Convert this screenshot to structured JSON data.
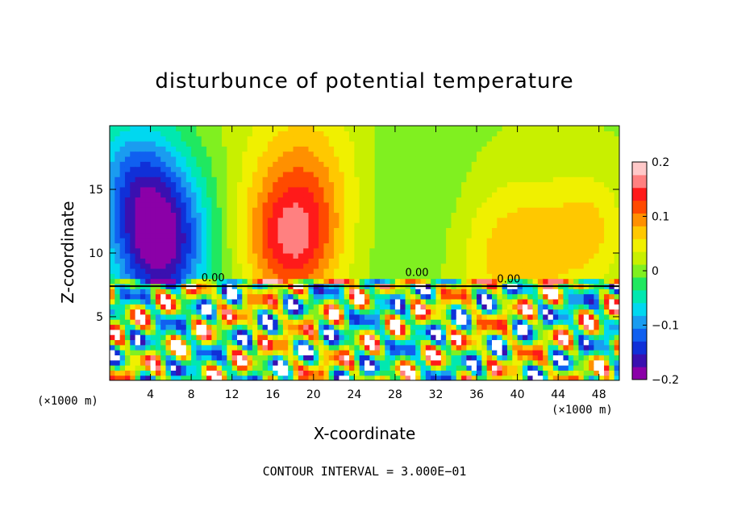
{
  "chart_data": {
    "type": "heatmap",
    "title": "disturbunce of potential temperature",
    "xlabel": "X-coordinate",
    "ylabel": "Z-coordinate",
    "x_unit": "(×1000 m)",
    "x_unit_right": "(×1000 m)",
    "xlim": [
      0,
      50
    ],
    "ylim": [
      0,
      20
    ],
    "x_ticks": [
      "4",
      "8",
      "12",
      "16",
      "20",
      "24",
      "28",
      "32",
      "36",
      "40",
      "44",
      "48"
    ],
    "y_ticks": [
      "5",
      "10",
      "15"
    ],
    "colorbar": {
      "ticks": [
        "0.2",
        "0.1",
        "0",
        "−0.1",
        "−0.2"
      ],
      "range": [
        -0.2,
        0.2
      ]
    },
    "contour_labels": [
      "0.00",
      "0.00",
      "0.00"
    ],
    "footer": "CONTOUR INTERVAL = 3.000E−01"
  },
  "colors": {
    "scale": [
      "#8b00a8",
      "#3a10b0",
      "#1030d8",
      "#1060f0",
      "#1a9cf0",
      "#00d8f0",
      "#00e8b0",
      "#20e860",
      "#80f020",
      "#c8f000",
      "#f0f000",
      "#ffc800",
      "#ff9000",
      "#ff4a00",
      "#ff1a1a",
      "#ff8080",
      "#ffc8c8"
    ]
  }
}
